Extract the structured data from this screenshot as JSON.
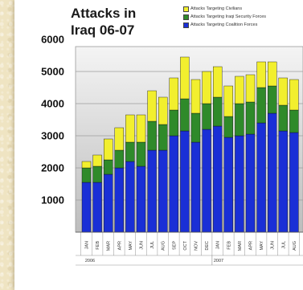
{
  "chart_data": {
    "type": "bar",
    "stacked": true,
    "title": "Attacks in Iraq 06-07",
    "categories": [
      "JAN",
      "FEB",
      "MAR",
      "APR",
      "MAY",
      "JUN",
      "JUL",
      "AUG",
      "SEP",
      "OCT",
      "NOV",
      "DEC",
      "JAN",
      "FEB",
      "MAR",
      "APR",
      "MAY",
      "JUN",
      "JUL",
      "AUG"
    ],
    "year_labels": [
      "2006",
      "2007"
    ],
    "series": [
      {
        "name": "Attacks Targeting Coalition Forces",
        "color": "#1a2fd6",
        "values": [
          1550,
          1550,
          1800,
          2000,
          2200,
          2050,
          2550,
          2550,
          3000,
          3150,
          2800,
          3200,
          3300,
          2950,
          3000,
          3050,
          3400,
          3700,
          3150,
          3100
        ]
      },
      {
        "name": "Attacks Targeting Iraqi Security Forces",
        "color": "#2f8a2a",
        "values": [
          450,
          500,
          450,
          550,
          600,
          750,
          900,
          800,
          800,
          1000,
          900,
          800,
          900,
          650,
          1000,
          1000,
          1100,
          850,
          800,
          700
        ]
      },
      {
        "name": "Attacks Targeting Civilians",
        "color": "#f2ef2e",
        "values": [
          200,
          350,
          650,
          700,
          850,
          850,
          950,
          850,
          1000,
          1300,
          1050,
          1000,
          950,
          950,
          850,
          850,
          800,
          750,
          850,
          950
        ]
      }
    ],
    "legend_order": [
      "Attacks Targeting Civilians",
      "Attacks Targeting Iraqi Security Forces",
      "Attacks Targeting Coalition Forces"
    ],
    "ylim": [
      0,
      6000
    ],
    "yticks": [
      1000,
      2000,
      3000,
      4000,
      5000,
      6000
    ],
    "grid": true,
    "legend": "top-right"
  }
}
